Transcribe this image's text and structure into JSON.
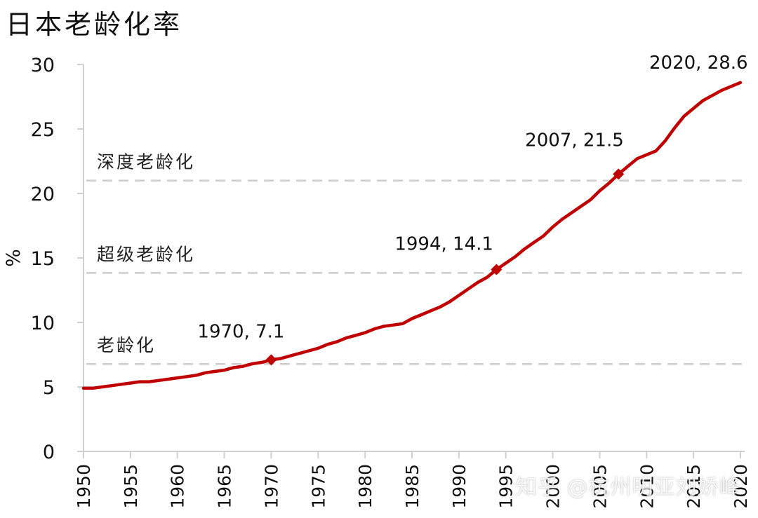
{
  "title": "日本老龄化率",
  "watermark": "知乎 @杭州明亚刘娇峰",
  "colors": {
    "line": "#C00000",
    "axis": "#D0D0D0",
    "reference": "#CCCCCC",
    "text": "#111111"
  },
  "chart_data": {
    "type": "line",
    "title": "日本老龄化率",
    "xlabel": "",
    "ylabel": "%",
    "xlim": [
      1950,
      2020
    ],
    "ylim": [
      0,
      30
    ],
    "yticks": [
      0,
      5,
      10,
      15,
      20,
      25,
      30
    ],
    "xticks": [
      1950,
      1955,
      1960,
      1965,
      1970,
      1975,
      1980,
      1985,
      1990,
      1995,
      2000,
      2005,
      2010,
      2015,
      2020
    ],
    "grid": false,
    "legend": null,
    "series": [
      {
        "name": "老龄化率",
        "x": [
          1950,
          1951,
          1952,
          1953,
          1954,
          1955,
          1956,
          1957,
          1958,
          1959,
          1960,
          1961,
          1962,
          1963,
          1964,
          1965,
          1966,
          1967,
          1968,
          1969,
          1970,
          1971,
          1972,
          1973,
          1974,
          1975,
          1976,
          1977,
          1978,
          1979,
          1980,
          1981,
          1982,
          1983,
          1984,
          1985,
          1986,
          1987,
          1988,
          1989,
          1990,
          1991,
          1992,
          1993,
          1994,
          1995,
          1996,
          1997,
          1998,
          1999,
          2000,
          2001,
          2002,
          2003,
          2004,
          2005,
          2006,
          2007,
          2008,
          2009,
          2010,
          2011,
          2012,
          2013,
          2014,
          2015,
          2016,
          2017,
          2018,
          2019,
          2020
        ],
        "values": [
          4.9,
          4.9,
          5.0,
          5.1,
          5.2,
          5.3,
          5.4,
          5.4,
          5.5,
          5.6,
          5.7,
          5.8,
          5.9,
          6.1,
          6.2,
          6.3,
          6.5,
          6.6,
          6.8,
          6.9,
          7.1,
          7.2,
          7.4,
          7.6,
          7.8,
          8.0,
          8.3,
          8.5,
          8.8,
          9.0,
          9.2,
          9.5,
          9.7,
          9.8,
          9.9,
          10.3,
          10.6,
          10.9,
          11.2,
          11.6,
          12.1,
          12.6,
          13.1,
          13.5,
          14.1,
          14.6,
          15.1,
          15.7,
          16.2,
          16.7,
          17.4,
          18.0,
          18.5,
          19.0,
          19.5,
          20.2,
          20.8,
          21.5,
          22.1,
          22.7,
          23.0,
          23.3,
          24.1,
          25.1,
          26.0,
          26.6,
          27.2,
          27.6,
          28.0,
          28.3,
          28.6
        ]
      }
    ],
    "reference_lines": [
      {
        "label": "老龄化",
        "value": 7
      },
      {
        "label": "超级老龄化",
        "value": 14
      },
      {
        "label": "深度老龄化",
        "value": 21
      }
    ],
    "annotations": [
      {
        "x": 1970,
        "y": 7.1,
        "text": "1970, 7.1",
        "marker": true
      },
      {
        "x": 1994,
        "y": 14.1,
        "text": "1994, 14.1",
        "marker": true
      },
      {
        "x": 2007,
        "y": 21.5,
        "text": "2007, 21.5",
        "marker": true
      },
      {
        "x": 2020,
        "y": 28.6,
        "text": "2020, 28.6",
        "marker": false
      }
    ]
  }
}
